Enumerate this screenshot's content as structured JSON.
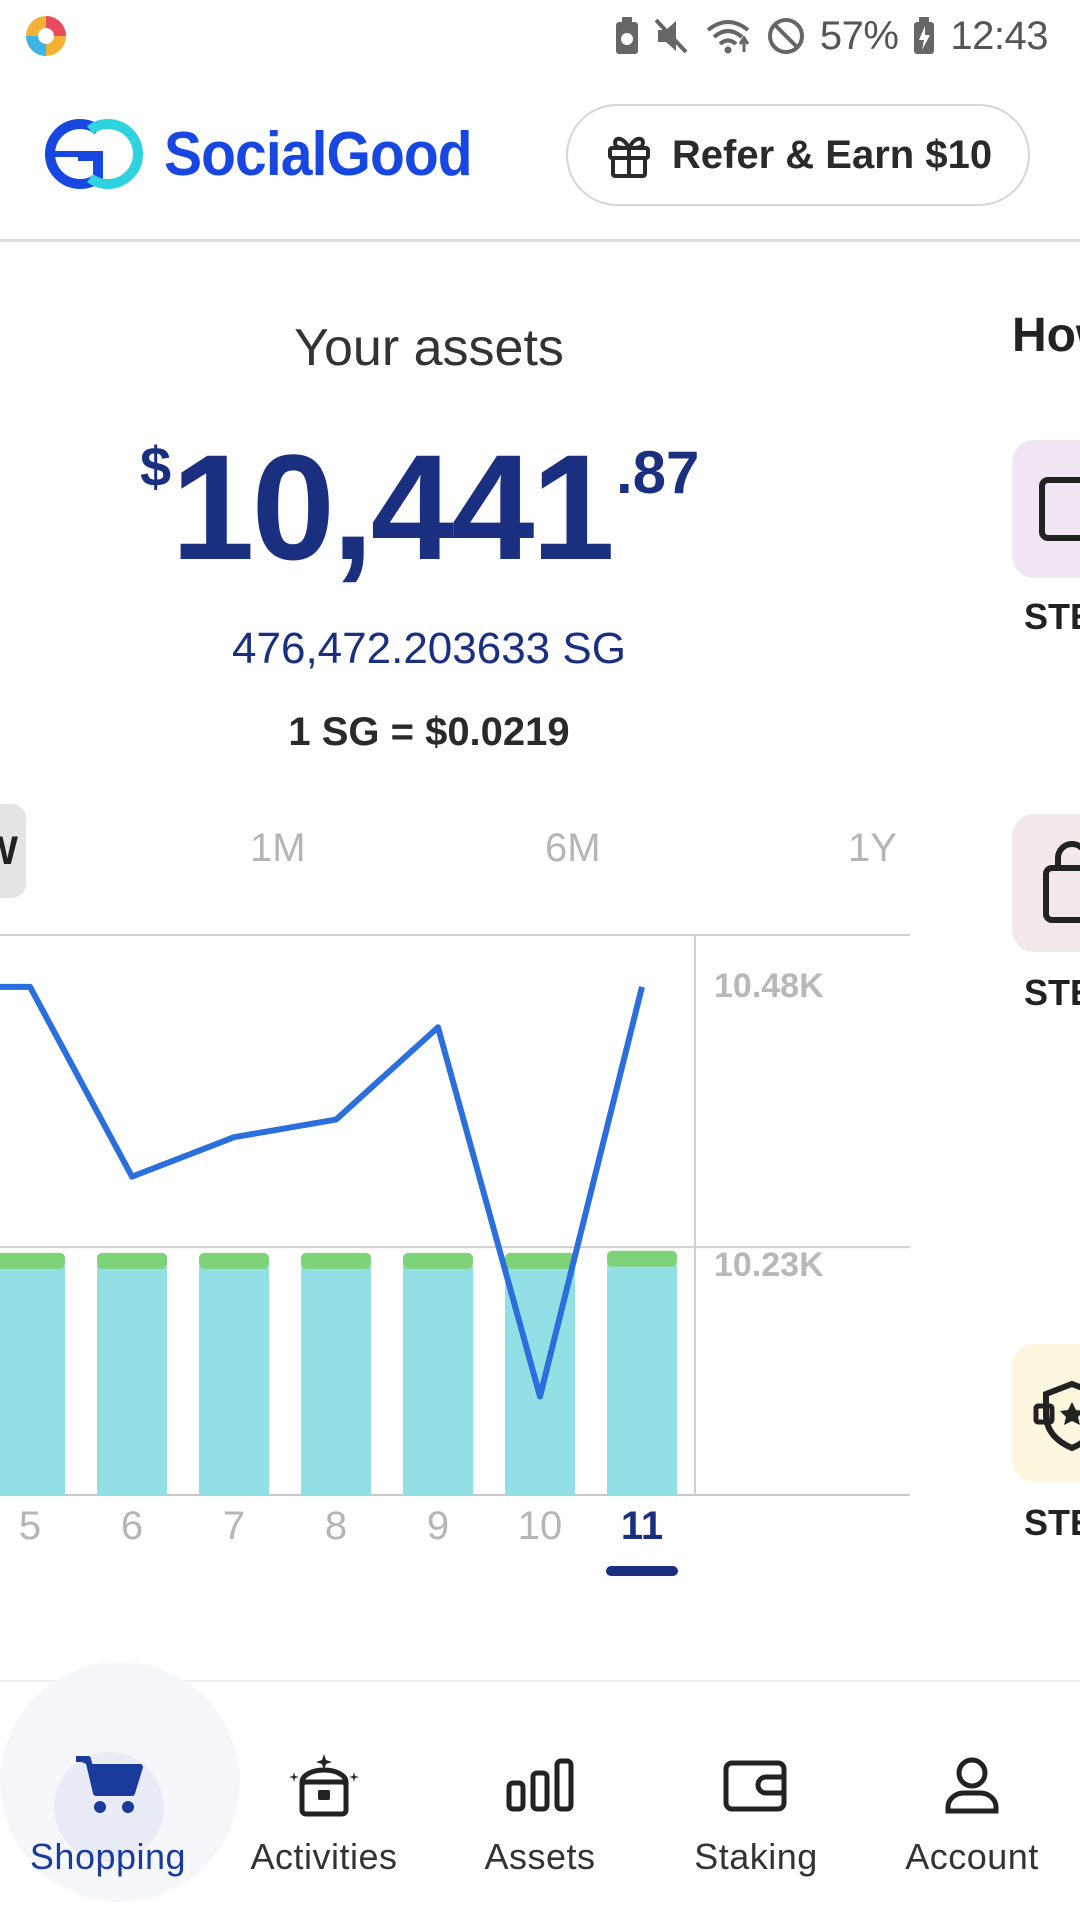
{
  "status": {
    "battery": "57%",
    "time": "12:43"
  },
  "header": {
    "brand": "SocialGood",
    "refer_label": "Refer & Earn $10",
    "brand_color": "#1846e0"
  },
  "assets": {
    "title": "Your assets",
    "currency": "$",
    "amount_main": "10,441",
    "amount_cents": ".87",
    "sg_amount": "476,472.203633 SG",
    "rate": "1 SG = $0.0219"
  },
  "range_tabs": [
    {
      "label": "W",
      "active": true
    },
    {
      "label": "1M",
      "active": false
    },
    {
      "label": "6M",
      "active": false
    },
    {
      "label": "1Y",
      "active": false
    }
  ],
  "right_column": {
    "title": "How",
    "labels": [
      "STE",
      "STE",
      "STE"
    ]
  },
  "chart_data": {
    "type": "bar",
    "categories": [
      "5",
      "6",
      "7",
      "8",
      "9",
      "10",
      "11"
    ],
    "selected_category": "11",
    "y_ticks": [
      "10.48K",
      "10.23K"
    ],
    "series": [
      {
        "type": "bar",
        "values": [
          10210,
          10210,
          10210,
          10210,
          10210,
          10210,
          10212
        ],
        "color": "#93dfe6",
        "cap_color": "#7ed37a"
      },
      {
        "type": "line",
        "values": [
          10480,
          10297,
          10335,
          10352,
          10441,
          10085,
          10480
        ],
        "color": "#2a6fdb"
      }
    ],
    "ylim": [
      9990,
      10530
    ],
    "grid": true
  },
  "bottom_nav": [
    {
      "label": "Shopping",
      "icon": "cart-icon",
      "active": true
    },
    {
      "label": "Activities",
      "icon": "treasure-chest-icon",
      "active": false
    },
    {
      "label": "Assets",
      "icon": "bar-chart-icon",
      "active": false
    },
    {
      "label": "Staking",
      "icon": "wallet-icon",
      "active": false
    },
    {
      "label": "Account",
      "icon": "person-icon",
      "active": false
    }
  ],
  "colors": {
    "primary_dark": "#1a2f80",
    "active_nav": "#1a3b9c",
    "muted": "#b5b5b5"
  }
}
